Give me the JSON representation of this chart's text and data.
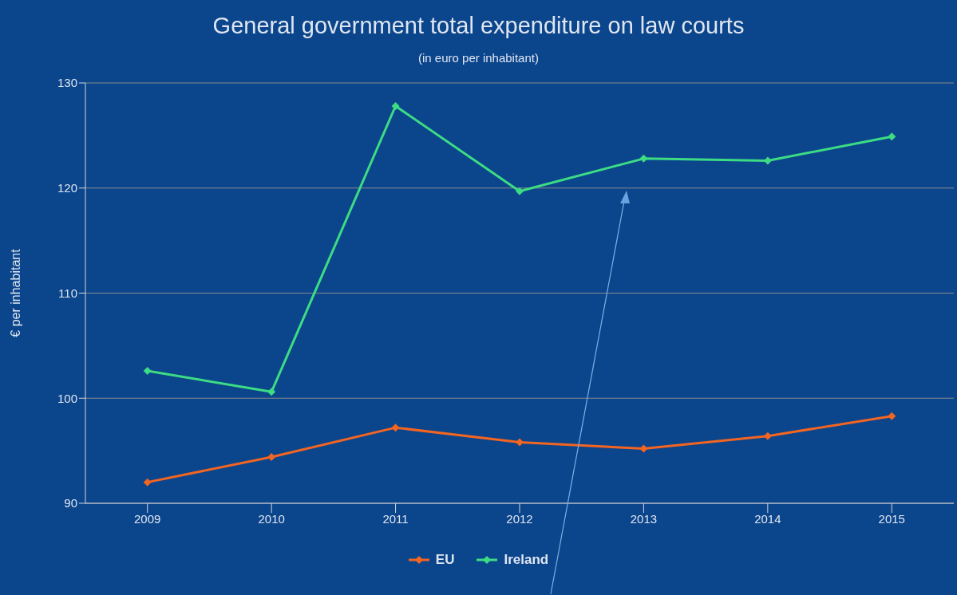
{
  "chart_data": {
    "type": "line",
    "title": "General government total expenditure on law courts",
    "subtitle": "(in euro per inhabitant)",
    "ylabel": "€ per inhabitant",
    "categories": [
      "2009",
      "2010",
      "2011",
      "2012",
      "2013",
      "2014",
      "2015"
    ],
    "series": [
      {
        "name": "EU",
        "color": "#f26522",
        "values": [
          92.0,
          94.4,
          97.2,
          95.8,
          95.2,
          96.4,
          98.3
        ]
      },
      {
        "name": "Ireland",
        "color": "#3ddc84",
        "values": [
          102.6,
          100.6,
          127.8,
          119.7,
          122.8,
          122.6,
          124.9
        ]
      }
    ],
    "ylim": [
      90,
      130
    ],
    "yticks": [
      90,
      100,
      110,
      120,
      130
    ],
    "grid": "y",
    "legend": "bottom",
    "marker": "diamond",
    "line_style": "solid"
  }
}
